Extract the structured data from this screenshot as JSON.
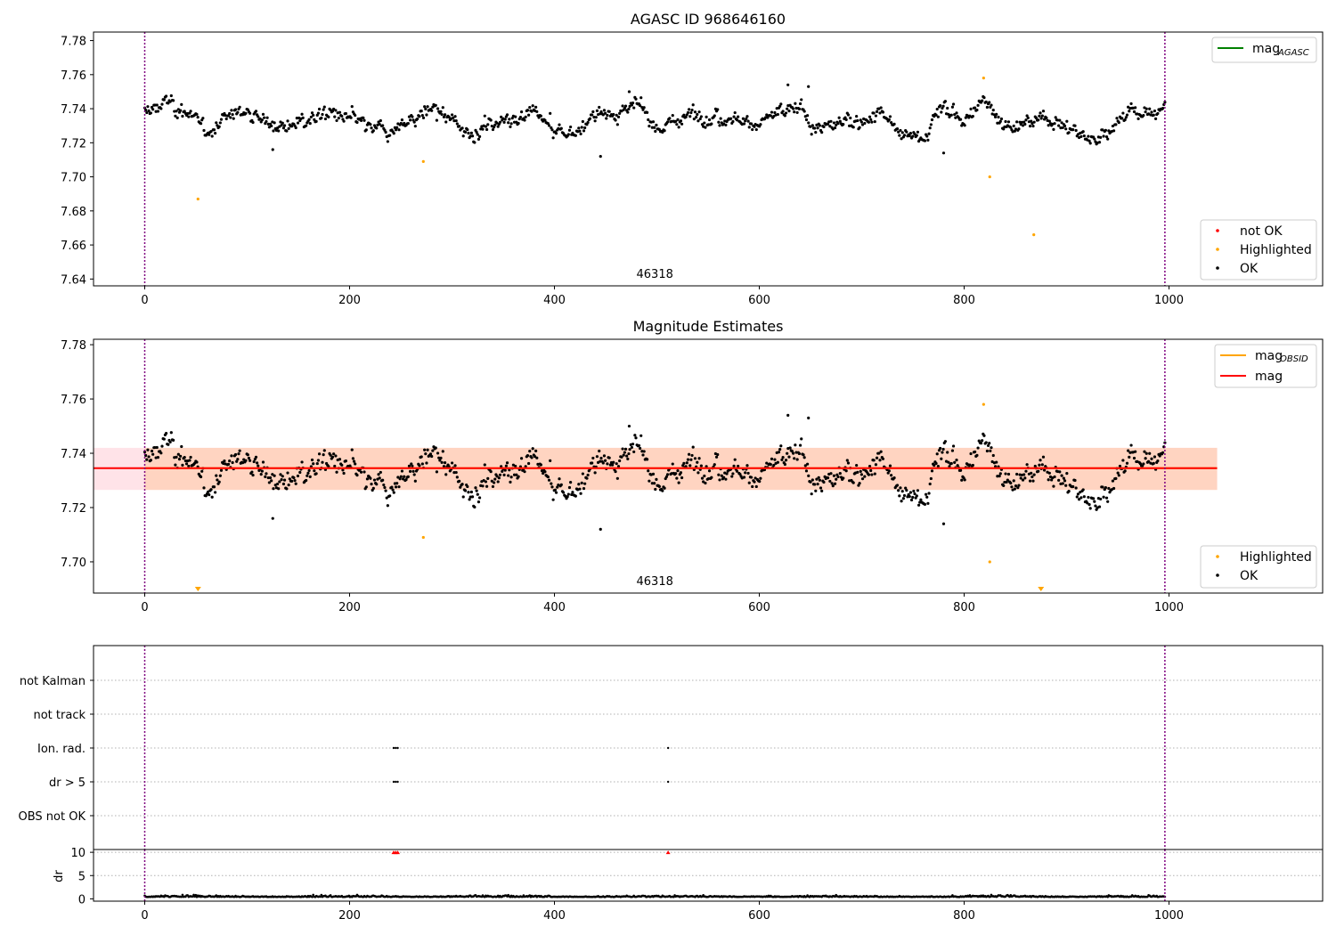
{
  "colors": {
    "ok": "#000000",
    "not_ok": "#ff0000",
    "highlighted": "#ffa500",
    "mag_agasc": "#008000",
    "mag_obsid": "#ffa500",
    "mag": "#ff0000",
    "obs_boundary": "#800080",
    "band_mag": "#ffc0cb",
    "band_obsid": "#ffc8a0"
  },
  "chart_data": [
    {
      "type": "scatter",
      "title": "AGASC ID 968646160",
      "xlim": [
        -50,
        1150
      ],
      "ylim": [
        7.636,
        7.785
      ],
      "xticks": [
        0,
        200,
        400,
        600,
        800,
        1000
      ],
      "yticks": [
        7.64,
        7.66,
        7.68,
        7.7,
        7.72,
        7.74,
        7.76,
        7.78
      ],
      "obs_boundaries": [
        0,
        996
      ],
      "obsid_label": "46318",
      "legend_lines": [
        {
          "label": "mag",
          "sub": "AGASC",
          "color_key": "mag_agasc"
        }
      ],
      "legend_points": [
        {
          "label": "not OK",
          "color_key": "not_ok"
        },
        {
          "label": "Highlighted",
          "color_key": "highlighted"
        },
        {
          "label": "OK",
          "color_key": "ok"
        }
      ],
      "highlighted_points": [
        [
          52,
          7.687
        ],
        [
          272,
          7.709
        ],
        [
          819,
          7.758
        ],
        [
          825,
          7.7
        ],
        [
          868,
          7.666
        ]
      ],
      "ok_series": {
        "x_start": 0,
        "x_end": 996,
        "n": 1000,
        "anchors": [
          [
            0,
            7.737
          ],
          [
            20,
            7.744
          ],
          [
            40,
            7.738
          ],
          [
            60,
            7.726
          ],
          [
            80,
            7.735
          ],
          [
            100,
            7.74
          ],
          [
            120,
            7.731
          ],
          [
            140,
            7.73
          ],
          [
            160,
            7.733
          ],
          [
            180,
            7.738
          ],
          [
            200,
            7.734
          ],
          [
            220,
            7.728
          ],
          [
            240,
            7.726
          ],
          [
            260,
            7.733
          ],
          [
            280,
            7.74
          ],
          [
            300,
            7.731
          ],
          [
            320,
            7.727
          ],
          [
            340,
            7.731
          ],
          [
            360,
            7.735
          ],
          [
            380,
            7.737
          ],
          [
            400,
            7.727
          ],
          [
            420,
            7.726
          ],
          [
            440,
            7.736
          ],
          [
            460,
            7.738
          ],
          [
            480,
            7.742
          ],
          [
            500,
            7.728
          ],
          [
            520,
            7.733
          ],
          [
            540,
            7.738
          ],
          [
            560,
            7.736
          ],
          [
            580,
            7.734
          ],
          [
            600,
            7.732
          ],
          [
            620,
            7.737
          ],
          [
            640,
            7.74
          ],
          [
            660,
            7.728
          ],
          [
            680,
            7.731
          ],
          [
            700,
            7.734
          ],
          [
            720,
            7.738
          ],
          [
            740,
            7.723
          ],
          [
            760,
            7.724
          ],
          [
            780,
            7.742
          ],
          [
            800,
            7.732
          ],
          [
            820,
            7.746
          ],
          [
            840,
            7.73
          ],
          [
            860,
            7.73
          ],
          [
            880,
            7.736
          ],
          [
            900,
            7.73
          ],
          [
            920,
            7.723
          ],
          [
            940,
            7.727
          ],
          [
            960,
            7.738
          ],
          [
            980,
            7.737
          ],
          [
            996,
            7.741
          ]
        ],
        "noise": 0.006,
        "spikes": [
          [
            628,
            7.754
          ],
          [
            648,
            7.753
          ],
          [
            473,
            7.75
          ],
          [
            445,
            7.712
          ],
          [
            125,
            7.716
          ],
          [
            780,
            7.714
          ]
        ]
      }
    },
    {
      "type": "scatter",
      "title": "Magnitude Estimates",
      "xlim": [
        -50,
        1150
      ],
      "ylim": [
        7.6885,
        7.782
      ],
      "xticks": [
        0,
        200,
        400,
        600,
        800,
        1000
      ],
      "yticks": [
        7.7,
        7.72,
        7.74,
        7.76,
        7.78
      ],
      "obs_boundaries": [
        0,
        996
      ],
      "obsid_label": "46318",
      "mag": {
        "value": 7.7345,
        "x_range": [
          -50,
          1047
        ],
        "band": [
          7.7265,
          7.742
        ]
      },
      "mag_obsid": {
        "value": 7.7345,
        "x_range": [
          0,
          1047
        ],
        "band": [
          7.7265,
          7.742
        ]
      },
      "legend_lines": [
        {
          "label": "mag",
          "sub": "OBSID",
          "color_key": "mag_obsid"
        },
        {
          "label": "mag",
          "sub": "",
          "color_key": "mag"
        }
      ],
      "legend_points": [
        {
          "label": "Highlighted",
          "color_key": "highlighted"
        },
        {
          "label": "OK",
          "color_key": "ok"
        }
      ],
      "highlighted_points": [
        [
          272,
          7.709
        ],
        [
          819,
          7.758
        ],
        [
          825,
          7.7
        ]
      ],
      "off_scale_markers": [
        52,
        875
      ]
    },
    {
      "type": "scatter",
      "title": "",
      "xlim": [
        -50,
        1150
      ],
      "categories": [
        "OBS not OK",
        "dr > 5",
        "Ion. rad.",
        "not track",
        "not Kalman"
      ],
      "flag_points": [
        {
          "category": "dr > 5",
          "x": [
            243,
            245,
            247,
            511
          ]
        },
        {
          "category": "Ion. rad.",
          "x": [
            243,
            245,
            247,
            511
          ]
        }
      ],
      "obs_boundaries": [
        0,
        996
      ]
    },
    {
      "type": "scatter",
      "title": "",
      "ylabel": "dr",
      "xlim": [
        -50,
        1150
      ],
      "ylim": [
        -0.5,
        10.6
      ],
      "xticks": [
        0,
        200,
        400,
        600,
        800,
        1000
      ],
      "yticks": [
        0,
        5,
        10
      ],
      "obs_boundaries": [
        0,
        996
      ],
      "dr_typical": 0.4,
      "dr_capped": [
        243,
        245,
        247,
        511
      ],
      "dr_cap_value": 10
    }
  ]
}
